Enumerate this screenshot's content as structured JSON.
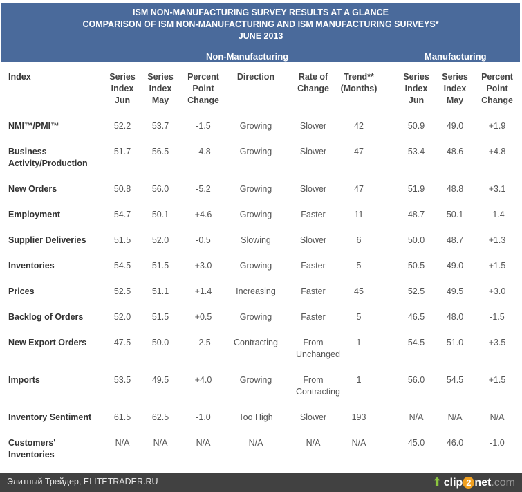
{
  "title": [
    "ISM NON-MANUFACTURING SURVEY RESULTS AT A GLANCE",
    "COMPARISON OF ISM NON-MANUFACTURING AND ISM MANUFACTURING SURVEYS*",
    "JUNE 2013"
  ],
  "sections": {
    "non_manufacturing": "Non-Manufacturing",
    "manufacturing": "Manufacturing"
  },
  "columns": [
    "Index",
    "Series Index Jun",
    "Series Index May",
    "Percent Point Change",
    "Direction",
    "Rate of Change",
    "Trend** (Months)",
    "Series Index Jun",
    "Series Index May",
    "Percent Point Change"
  ],
  "rows": [
    [
      "NMI™/PMI™",
      "52.2",
      "53.7",
      "-1.5",
      "Growing",
      "Slower",
      "42",
      "50.9",
      "49.0",
      "+1.9"
    ],
    [
      "Business Activity/Production",
      "51.7",
      "56.5",
      "-4.8",
      "Growing",
      "Slower",
      "47",
      "53.4",
      "48.6",
      "+4.8"
    ],
    [
      "New Orders",
      "50.8",
      "56.0",
      "-5.2",
      "Growing",
      "Slower",
      "47",
      "51.9",
      "48.8",
      "+3.1"
    ],
    [
      "Employment",
      "54.7",
      "50.1",
      "+4.6",
      "Growing",
      "Faster",
      "11",
      "48.7",
      "50.1",
      "-1.4"
    ],
    [
      "Supplier Deliveries",
      "51.5",
      "52.0",
      "-0.5",
      "Slowing",
      "Slower",
      "6",
      "50.0",
      "48.7",
      "+1.3"
    ],
    [
      "Inventories",
      "54.5",
      "51.5",
      "+3.0",
      "Growing",
      "Faster",
      "5",
      "50.5",
      "49.0",
      "+1.5"
    ],
    [
      "Prices",
      "52.5",
      "51.1",
      "+1.4",
      "Increasing",
      "Faster",
      "45",
      "52.5",
      "49.5",
      "+3.0"
    ],
    [
      "Backlog of Orders",
      "52.0",
      "51.5",
      "+0.5",
      "Growing",
      "Faster",
      "5",
      "46.5",
      "48.0",
      "-1.5"
    ],
    [
      "New Export Orders",
      "47.5",
      "50.0",
      "-2.5",
      "Contracting",
      "From Unchanged",
      "1",
      "54.5",
      "51.0",
      "+3.5"
    ],
    [
      "Imports",
      "53.5",
      "49.5",
      "+4.0",
      "Growing",
      "From Contracting",
      "1",
      "56.0",
      "54.5",
      "+1.5"
    ],
    [
      "Inventory Sentiment",
      "61.5",
      "62.5",
      "-1.0",
      "Too High",
      "Slower",
      "193",
      "N/A",
      "N/A",
      "N/A"
    ],
    [
      "Customers' Inventories",
      "N/A",
      "N/A",
      "N/A",
      "N/A",
      "N/A",
      "N/A",
      "45.0",
      "46.0",
      "-1.0"
    ]
  ],
  "footer": {
    "text": "Элитный Трейдер, ELITETRADER.RU",
    "logo": "clip2net.com"
  }
}
